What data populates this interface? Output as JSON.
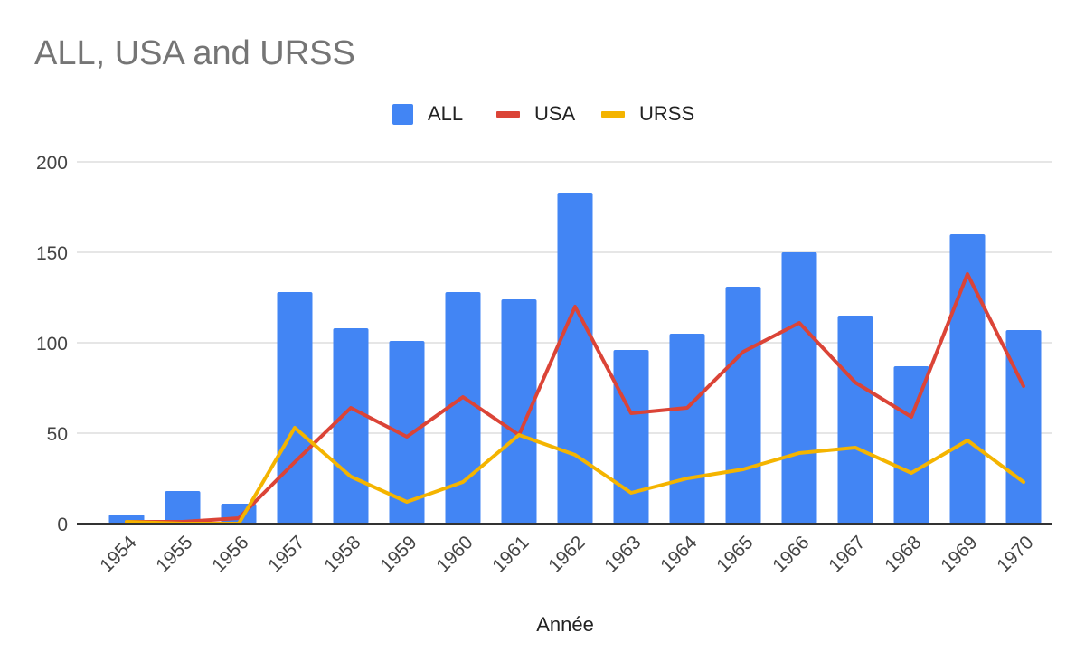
{
  "chart_data": {
    "type": "bar",
    "title": "ALL, USA and URSS",
    "xlabel": "Année",
    "ylabel": "",
    "ylim": [
      0,
      200
    ],
    "yticks": [
      0,
      50,
      100,
      150,
      200
    ],
    "grid": true,
    "legend_position": "top",
    "categories": [
      "1954",
      "1955",
      "1956",
      "1957",
      "1958",
      "1959",
      "1960",
      "1961",
      "1962",
      "1963",
      "1964",
      "1965",
      "1966",
      "1967",
      "1968",
      "1969",
      "1970"
    ],
    "series": [
      {
        "name": "ALL",
        "type": "bar",
        "color": "#4285f4",
        "values": [
          5,
          18,
          11,
          128,
          108,
          101,
          128,
          124,
          183,
          96,
          105,
          131,
          150,
          115,
          87,
          160,
          107
        ]
      },
      {
        "name": "USA",
        "type": "line",
        "color": "#db4437",
        "values": [
          1,
          1,
          3,
          34,
          64,
          48,
          70,
          49,
          120,
          61,
          64,
          95,
          111,
          78,
          59,
          138,
          76
        ]
      },
      {
        "name": "URSS",
        "type": "line",
        "color": "#f4b400",
        "values": [
          1,
          0,
          0,
          53,
          26,
          12,
          23,
          49,
          38,
          17,
          25,
          30,
          39,
          42,
          28,
          46,
          23
        ]
      }
    ]
  }
}
